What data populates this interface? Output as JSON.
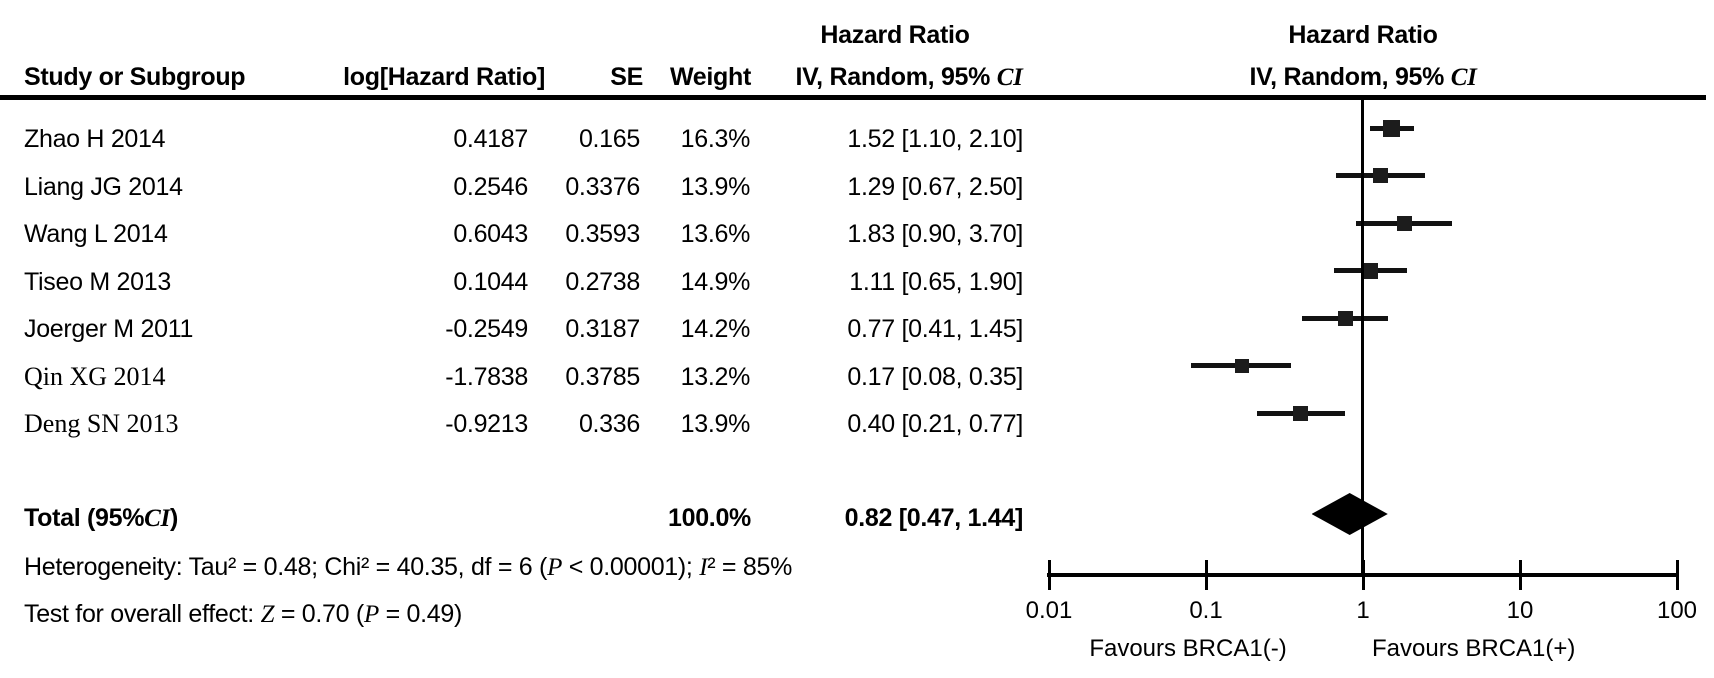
{
  "headers": {
    "study_col": "Study or Subgroup",
    "loghr_col": "log[Hazard Ratio]",
    "se_col": "SE",
    "weight_col": "Weight",
    "effect_title": "Hazard Ratio",
    "effect_method_prefix": "IV, Random, 95% ",
    "ci_label": "CI",
    "plot_title": "Hazard Ratio",
    "plot_method_prefix": "IV, Random, 95% ",
    "plot_ci_label": "CI"
  },
  "chart_data": {
    "type": "forest",
    "title": "Hazard Ratio",
    "method_label": "IV, Random, 95% CI",
    "x_scale": "log10",
    "x_range": [
      0.01,
      100
    ],
    "x_ticks": [
      0.01,
      0.1,
      1,
      10,
      100
    ],
    "x_tick_labels": [
      "0.01",
      "0.1",
      "1",
      "10",
      "100"
    ],
    "null_line": 1,
    "favours_left": "Favours BRCA1(-)",
    "favours_right": "Favours BRCA1(+)",
    "studies": [
      {
        "name": "Zhao H 2014",
        "serif": false,
        "log_hr": "0.4187",
        "se": "0.165",
        "weight": "16.3%",
        "weight_pct": 16.3,
        "hr": 1.52,
        "ci_low": 1.1,
        "ci_high": 2.1,
        "hr_text": "1.52 [1.10, 2.10]"
      },
      {
        "name": "Liang JG 2014",
        "serif": false,
        "log_hr": "0.2546",
        "se": "0.3376",
        "weight": "13.9%",
        "weight_pct": 13.9,
        "hr": 1.29,
        "ci_low": 0.67,
        "ci_high": 2.5,
        "hr_text": "1.29 [0.67, 2.50]"
      },
      {
        "name": "Wang L 2014",
        "serif": false,
        "log_hr": "0.6043",
        "se": "0.3593",
        "weight": "13.6%",
        "weight_pct": 13.6,
        "hr": 1.83,
        "ci_low": 0.9,
        "ci_high": 3.7,
        "hr_text": "1.83 [0.90, 3.70]"
      },
      {
        "name": "Tiseo M 2013",
        "serif": false,
        "log_hr": "0.1044",
        "se": "0.2738",
        "weight": "14.9%",
        "weight_pct": 14.9,
        "hr": 1.11,
        "ci_low": 0.65,
        "ci_high": 1.9,
        "hr_text": "1.11 [0.65, 1.90]"
      },
      {
        "name": "Joerger M 2011",
        "serif": false,
        "log_hr": "-0.2549",
        "se": "0.3187",
        "weight": "14.2%",
        "weight_pct": 14.2,
        "hr": 0.77,
        "ci_low": 0.41,
        "ci_high": 1.45,
        "hr_text": "0.77 [0.41, 1.45]"
      },
      {
        "name": "Qin XG 2014",
        "serif": true,
        "log_hr": "-1.7838",
        "se": "0.3785",
        "weight": "13.2%",
        "weight_pct": 13.2,
        "hr": 0.17,
        "ci_low": 0.08,
        "ci_high": 0.35,
        "hr_text": "0.17 [0.08, 0.35]"
      },
      {
        "name": "Deng SN 2013",
        "serif": true,
        "log_hr": "-0.9213",
        "se": "0.336",
        "weight": "13.9%",
        "weight_pct": 13.9,
        "hr": 0.4,
        "ci_low": 0.21,
        "ci_high": 0.77,
        "hr_text": "0.40 [0.21, 0.77]"
      }
    ],
    "total": {
      "label_prefix": "Total (95%",
      "label_ci": "CI",
      "label_suffix": ")",
      "weight": "100.0%",
      "hr": 0.82,
      "ci_low": 0.47,
      "ci_high": 1.44,
      "hr_text": "0.82 [0.47, 1.44]"
    },
    "heterogeneity_text": "Heterogeneity: Tau² = 0.48; Chi² = 40.35, df = 6 (P < 0.00001); I² = 85%",
    "overall_effect_text": "Test for overall effect: Z = 0.70 (P = 0.49)"
  },
  "footnotes": {
    "heterogeneity_segments": [
      {
        "text": "Heterogeneity: Tau² = 0.48; Chi² = 40.35, df = 6 (",
        "italic": false
      },
      {
        "text": "P",
        "italic": true
      },
      {
        "text": " < 0.00001); ",
        "italic": false
      },
      {
        "text": "I",
        "italic": true
      },
      {
        "text": "² = 85%",
        "italic": false
      }
    ],
    "overall_effect_segments": [
      {
        "text": "Test for overall effect: ",
        "italic": false
      },
      {
        "text": "Z",
        "italic": true
      },
      {
        "text": " = 0.70 (",
        "italic": false
      },
      {
        "text": "P",
        "italic": true
      },
      {
        "text": " = 0.49)",
        "italic": false
      }
    ]
  },
  "axis": {
    "tick_labels": [
      "0.01",
      "0.1",
      "1",
      "10",
      "100"
    ],
    "favours_left": "Favours BRCA1(-)",
    "favours_right": "Favours BRCA1(+)"
  }
}
